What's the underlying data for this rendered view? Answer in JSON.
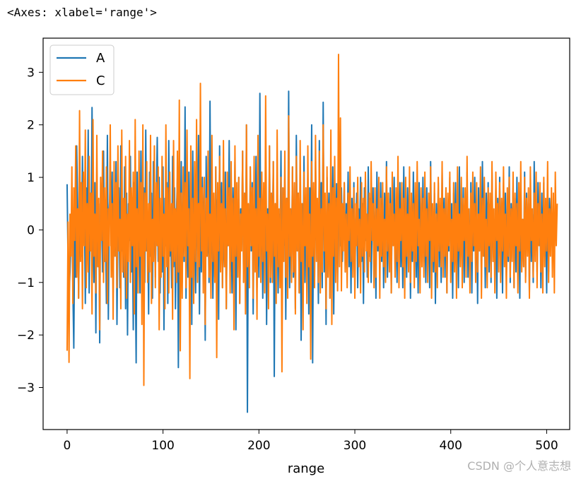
{
  "header": {
    "repr": "<Axes: xlabel='range'>"
  },
  "watermark": "CSDN @个人意志想",
  "chart_data": {
    "type": "line",
    "xlabel": "range",
    "ylabel": "",
    "xlim": [
      -25,
      524
    ],
    "ylim": [
      -3.8,
      3.65
    ],
    "xticks": [
      0,
      100,
      200,
      300,
      400,
      500
    ],
    "yticks": [
      -3,
      -2,
      -1,
      0,
      1,
      2,
      3
    ],
    "xtick_labels": [
      "0",
      "100",
      "200",
      "300",
      "400",
      "500"
    ],
    "ytick_labels": [
      "−3",
      "−2",
      "−1",
      "0",
      "1",
      "2",
      "3"
    ],
    "grid": false,
    "legend": {
      "placement": "top-left"
    },
    "n_points": 500,
    "series": [
      {
        "name": "A",
        "color": "#1f77b4",
        "values": [
          0.87,
          -0.6,
          -1.3,
          -0.8,
          -0.2,
          0.5,
          -1.1,
          -2.25,
          0.3,
          -0.9,
          1.6,
          0.4,
          -1.3,
          0.2,
          0.9,
          -0.5,
          1.4,
          -0.2,
          0.6,
          -1.4,
          0.8,
          -0.3,
          1.9,
          -1.2,
          0.7,
          -0.4,
          2.33,
          0.1,
          -1.0,
          0.9,
          -1.96,
          1.2,
          -0.7,
          0.5,
          -2.15,
          1.0,
          0.3,
          -0.8,
          1.5,
          -0.6,
          0.2,
          -1.4,
          1.8,
          -1.7,
          0.4,
          0.9,
          -0.3,
          1.1,
          -1.2,
          0.6,
          -0.5,
          1.3,
          -1.8,
          0.2,
          0.8,
          -1.1,
          1.6,
          -0.4,
          0.3,
          -0.9,
          1.2,
          -1.5,
          0.7,
          -2.0,
          0.5,
          -0.2,
          1.4,
          -0.8,
          0.1,
          -1.9,
          0.9,
          -0.6,
          -2.53,
          1.1,
          -0.3,
          0.6,
          -1.2,
          1.5,
          -0.7,
          0.2,
          0.8,
          -1.0,
          1.9,
          -0.4,
          0.3,
          -1.6,
          1.1,
          -0.5,
          0.7,
          -1.3,
          1.3,
          0.0,
          -0.9,
          0.5,
          1.76,
          -0.6,
          1.0,
          -1.2,
          0.4,
          -0.8,
          1.2,
          -1.9,
          0.6,
          -0.3,
          0.9,
          -1.4,
          1.7,
          -0.5,
          0.2,
          -1.1,
          1.4,
          -0.7,
          0.8,
          -1.5,
          0.3,
          1.0,
          -2.62,
          0.5,
          -0.4,
          1.3,
          -1.0,
          0.7,
          -0.6,
          2.34,
          -1.3,
          0.4,
          -0.9,
          1.1,
          -0.2,
          0.6,
          -1.8,
          1.5,
          -0.7,
          0.2,
          -1.2,
          0.9,
          -0.4,
          1.8,
          -1.6,
          0.5,
          -0.8,
          1.0,
          -0.3,
          0.7,
          -2.1,
          1.4,
          -0.5,
          0.3,
          -1.0,
          2.45,
          -0.6,
          0.8,
          -1.3,
          0.4,
          -0.9,
          1.2,
          -0.2,
          0.6,
          -1.7,
          1.6,
          -0.4,
          0.9,
          -1.1,
          0.3,
          -0.7,
          1.1,
          -1.5,
          0.5,
          -0.3,
          1.7,
          -0.8,
          0.2,
          -1.2,
          0.8,
          -0.5,
          1.3,
          -1.9,
          0.6,
          -0.6,
          1.0,
          -1.4,
          0.4,
          -0.2,
          1.5,
          -1.0,
          0.7,
          -0.7,
          2.0,
          -3.47,
          0.3,
          -0.8,
          1.2,
          -0.4,
          0.9,
          -1.6,
          0.5,
          -0.3,
          1.4,
          -1.1,
          0.2,
          -0.9,
          2.6,
          -0.5,
          0.8,
          -1.3,
          0.6,
          -0.6,
          1.1,
          -1.8,
          0.4,
          -0.4,
          1.6,
          -1.0,
          0.7,
          -0.2,
          1.3,
          -2.79,
          0.5,
          -0.7,
          0.9,
          -1.2,
          0.3,
          -0.5,
          1.5,
          -1.4,
          0.8,
          -0.3,
          1.0,
          -1.7,
          0.6,
          -0.8,
          2.64,
          -1.1,
          0.4,
          -0.6,
          1.2,
          -0.9,
          0.2,
          -1.5,
          1.8,
          -0.4,
          0.7,
          -1.2,
          0.9,
          -2.1,
          0.5,
          -0.7,
          1.4,
          -1.0,
          0.3,
          -0.3,
          1.1,
          -1.6,
          0.8,
          -0.5,
          2.0,
          -2.53,
          0.6,
          -0.9,
          1.3,
          -0.2,
          0.4,
          -1.4,
          1.7,
          -0.6,
          0.9,
          -1.1,
          2.43,
          -0.8,
          0.5,
          -1.8,
          1.0,
          -0.4,
          0.7,
          -1.3,
          0.3,
          -0.7,
          1.2,
          -1.6,
          0.6,
          -0.5,
          0.88,
          -1.0,
          0.4,
          0.2,
          -0.3,
          0.8,
          -0.6,
          0.1,
          0.9,
          -0.8,
          0.5,
          -0.2,
          1.1,
          -0.7,
          0.3,
          -1.2,
          0.6,
          -0.4,
          0.9,
          -0.9,
          0.2,
          0.7,
          -1.1,
          0.4,
          -0.3,
          1.0,
          -0.6,
          0.5,
          -1.4,
          0.8,
          -0.2,
          0.3,
          -0.9,
          1.2,
          -0.5,
          0.6,
          -1.0,
          0.1,
          0.8,
          -0.7,
          0.4,
          -1.3,
          1.1,
          -0.4,
          0.2,
          -0.8,
          0.9,
          -0.6,
          0.5,
          -1.1,
          0.7,
          -0.3,
          1.3,
          -0.9,
          0.3,
          -0.5,
          0.8,
          -1.2,
          0.6,
          -0.1,
          1.0,
          -0.8,
          0.4,
          -1.0,
          0.7,
          -0.4,
          0.9,
          -0.7,
          0.2,
          -1.1,
          1.2,
          -0.5,
          0.5,
          -0.9,
          0.8,
          -0.2,
          0.6,
          -1.3,
          0.3,
          -0.6,
          1.1,
          -0.4,
          0.7,
          -0.9,
          0.4,
          -1.2,
          0.9,
          -0.3,
          0.5,
          -0.7,
          1.0,
          -0.6,
          0.2,
          -1.0,
          0.8,
          -0.4,
          0.6,
          -1.1,
          1.3,
          -0.2,
          0.4,
          -0.8,
          0.7,
          -1.4,
          0.5,
          -0.5,
          0.9,
          -0.7,
          0.3,
          -1.0,
          1.1,
          -0.3,
          0.6,
          -0.9,
          0.8,
          -1.2,
          0.2,
          -0.4,
          1.0,
          -0.6,
          0.5,
          -1.3,
          0.7,
          -0.2,
          0.9,
          -0.8,
          0.4,
          -1.1,
          1.2,
          -0.5,
          0.3,
          -0.7,
          0.8,
          -1.0,
          0.6,
          -0.3,
          1.1,
          -0.9,
          0.2,
          -0.6,
          0.9,
          -1.2,
          0.5,
          -0.4,
          1.0,
          -0.7,
          0.4,
          -1.4,
          0.8,
          -0.2,
          0.6,
          -0.9,
          1.3,
          -0.5,
          0.3,
          -1.1,
          0.7,
          -0.3,
          0.9,
          -0.8,
          0.5,
          -1.0,
          1.1,
          -0.6,
          0.2,
          -0.4,
          0.8,
          -1.3,
          0.6,
          -0.5,
          1.0,
          -0.7,
          0.4,
          -1.2,
          0.9,
          -0.3,
          0.7,
          -0.9,
          0.3,
          -0.6,
          1.2,
          -1.0,
          0.5,
          -0.2,
          0.8,
          -1.1,
          0.6,
          -0.8,
          1.0,
          -0.4,
          0.4,
          -1.3,
          0.9,
          -0.5,
          0.2,
          -0.7,
          1.1,
          -0.9,
          0.7,
          -0.3,
          0.5,
          -1.2,
          0.8,
          -0.6,
          0.3,
          -1.0,
          1.3,
          -0.4,
          0.6,
          -0.8,
          0.9,
          -0.2,
          0.4,
          -1.1,
          0.7,
          -0.7,
          0.9,
          -0.5,
          0.3,
          -1.2,
          0.92,
          -0.8,
          0.6,
          0.1
        ]
      },
      {
        "name": "C",
        "color": "#ff7f0e",
        "values": [
          -2.3,
          0.15,
          -2.52,
          0.3,
          -0.5,
          1.2,
          -1.4,
          0.8,
          -0.2,
          1.6,
          -0.9,
          0.4,
          -1.3,
          2.27,
          -0.6,
          0.9,
          -1.5,
          1.1,
          -0.3,
          1.9,
          -1.1,
          0.5,
          -0.8,
          1.4,
          -0.4,
          0.7,
          -1.6,
          2.1,
          -0.5,
          0.3,
          -1.2,
          1.8,
          -0.7,
          0.6,
          -1.9,
          1.0,
          -0.2,
          1.5,
          -1.0,
          0.8,
          -0.6,
          1.2,
          -1.4,
          0.4,
          -0.3,
          2.0,
          -0.9,
          0.5,
          -1.7,
          1.3,
          -0.5,
          0.9,
          -1.1,
          1.6,
          -0.4,
          0.2,
          -1.5,
          1.9,
          -0.8,
          0.6,
          -0.9,
          1.4,
          -1.3,
          0.3,
          -0.6,
          1.7,
          -1.0,
          0.8,
          -0.3,
          1.1,
          -1.6,
          2.1,
          -0.7,
          0.4,
          -1.2,
          1.5,
          -0.5,
          0.9,
          -1.8,
          2.0,
          -2.96,
          0.7,
          -0.4,
          1.3,
          -1.0,
          0.5,
          -0.8,
          1.8,
          -1.4,
          0.2,
          -0.6,
          1.6,
          -1.1,
          0.9,
          -0.3,
          1.2,
          -1.9,
          0.6,
          -0.9,
          1.4,
          -0.5,
          0.3,
          -1.5,
          2.0,
          -0.7,
          0.8,
          -1.2,
          1.1,
          -0.4,
          0.5,
          -1.7,
          1.7,
          -0.6,
          0.4,
          -1.0,
          1.5,
          -0.8,
          2.47,
          -2.3,
          0.7,
          -1.3,
          1.2,
          -0.5,
          0.9,
          -1.1,
          1.9,
          -0.3,
          0.4,
          -2.83,
          1.6,
          -0.9,
          0.6,
          -1.4,
          1.3,
          -0.6,
          2.1,
          -1.0,
          0.5,
          -0.7,
          2.79,
          -0.4,
          0.8,
          -1.2,
          1.0,
          -1.8,
          0.6,
          -0.5,
          1.5,
          -0.9,
          0.3,
          -1.3,
          1.8,
          -0.6,
          0.7,
          -1.0,
          1.2,
          -2.43,
          0.9,
          -0.4,
          1.4,
          -0.8,
          0.5,
          -1.1,
          1.7,
          -0.7,
          0.4,
          -1.5,
          1.1,
          -0.3,
          0.8,
          -1.2,
          1.3,
          -0.6,
          0.6,
          -1.9,
          1.6,
          -0.5,
          0.9,
          -0.9,
          1.0,
          -1.4,
          0.3,
          -0.4,
          1.5,
          -1.0,
          0.7,
          -1.6,
          2.0,
          -0.7,
          0.5,
          -1.1,
          1.2,
          -0.3,
          0.8,
          -1.3,
          1.4,
          -0.8,
          0.4,
          -1.7,
          1.8,
          -0.5,
          0.6,
          -1.0,
          1.1,
          -0.6,
          0.9,
          -1.2,
          2.55,
          -0.4,
          0.3,
          -1.5,
          1.6,
          -0.9,
          0.7,
          -1.0,
          1.3,
          -0.5,
          0.5,
          -1.4,
          1.9,
          -0.7,
          0.4,
          -1.1,
          1.0,
          -2.7,
          0.8,
          -0.6,
          1.5,
          -0.9,
          0.6,
          -1.3,
          2.17,
          -0.5,
          0.4,
          -1.0,
          1.2,
          -0.8,
          0.9,
          -1.6,
          1.4,
          -0.4,
          0.7,
          -1.2,
          1.7,
          -0.6,
          0.5,
          -1.9,
          1.1,
          -0.3,
          0.8,
          -1.4,
          1.6,
          -0.7,
          0.3,
          -2.46,
          1.3,
          -0.5,
          0.9,
          -1.1,
          1.8,
          -0.6,
          0.6,
          -1.0,
          1.5,
          -1.2,
          0.4,
          -0.8,
          2.0,
          -0.4,
          0.7,
          -1.5,
          1.2,
          -0.9,
          0.5,
          -1.3,
          1.9,
          -1.8,
          0.8,
          -0.5,
          1.4,
          -1.0,
          0.6,
          -1.16,
          3.34,
          -0.7,
          2.13,
          -1.16,
          0.5,
          -0.4,
          0.9,
          -0.8,
          0.3,
          -1.1,
          0.7,
          -0.2,
          1.2,
          -0.6,
          0.4,
          -0.9,
          0.8,
          -1.3,
          0.5,
          -0.3,
          1.0,
          -0.7,
          0.2,
          -1.2,
          0.9,
          -0.5,
          0.6,
          -0.8,
          1.1,
          -0.4,
          0.3,
          -1.0,
          0.7,
          -0.6,
          1.3,
          -0.2,
          0.5,
          -1.1,
          0.8,
          -0.9,
          0.4,
          -0.3,
          1.0,
          -1.3,
          0.6,
          -0.5,
          0.9,
          -0.7,
          0.2,
          -1.0,
          1.2,
          -0.4,
          0.7,
          -0.8,
          0.5,
          -1.2,
          1.1,
          -0.3,
          0.3,
          -0.9,
          0.8,
          -0.6,
          1.4,
          -1.1,
          0.4,
          -0.2,
          0.9,
          -0.7,
          0.6,
          -1.3,
          1.0,
          -0.5,
          0.3,
          -0.8,
          1.2,
          -1.0,
          0.7,
          -0.4,
          0.5,
          -1.1,
          0.9,
          -0.6,
          1.3,
          -0.3,
          0.2,
          -1.2,
          0.8,
          -0.7,
          0.6,
          -0.9,
          1.1,
          -0.5,
          0.4,
          -1.0,
          0.7,
          -0.2,
          1.2,
          -1.3,
          0.5,
          -0.6,
          0.9,
          -0.8,
          0.3,
          -1.1,
          1.0,
          -0.4,
          0.6,
          -0.7,
          1.3,
          -0.9,
          0.4,
          -0.5,
          0.8,
          -1.2,
          0.7,
          -0.3,
          1.1,
          -1.0,
          0.2,
          -0.6,
          0.9,
          -0.8,
          0.5,
          -1.3,
          1.2,
          -0.4,
          0.3,
          -0.7,
          1.0,
          -1.1,
          0.6,
          -0.2,
          0.8,
          -0.9,
          1.4,
          -0.5,
          0.4,
          -1.2,
          0.7,
          -0.6,
          1.1,
          -0.3,
          0.5,
          -1.0,
          0.9,
          -0.8,
          0.3,
          -0.4,
          1.2,
          -1.3,
          0.6,
          -0.5,
          1.0,
          -0.7,
          0.2,
          -1.1,
          0.8,
          -0.3,
          0.7,
          -0.9,
          1.3,
          -0.6,
          0.4,
          -1.2,
          1.1,
          -0.2,
          0.5,
          -0.8,
          0.9,
          -1.0,
          0.6,
          -0.4,
          1.2,
          -0.7,
          0.3,
          -1.3,
          0.8,
          -0.5,
          1.0,
          -0.9,
          0.4,
          -0.6,
          1.1,
          -1.1,
          0.7,
          -0.3,
          0.5,
          -1.2,
          0.9,
          -0.4,
          1.3,
          -0.8,
          0.2,
          -0.7,
          1.0,
          -1.0,
          0.6,
          -0.5,
          0.8,
          -1.3,
          1.2,
          -0.2,
          0.4,
          -0.9,
          0.7,
          -0.6,
          1.1,
          -1.1,
          0.5,
          -0.3,
          0.9,
          -0.8,
          0.3,
          -1.2,
          1.0,
          -0.7,
          0.6,
          -0.4,
          1.3,
          -1.0,
          0.4,
          -0.5,
          0.8,
          -0.9,
          0.7,
          -1.2,
          1.1,
          -0.3,
          0.5
        ]
      }
    ]
  }
}
